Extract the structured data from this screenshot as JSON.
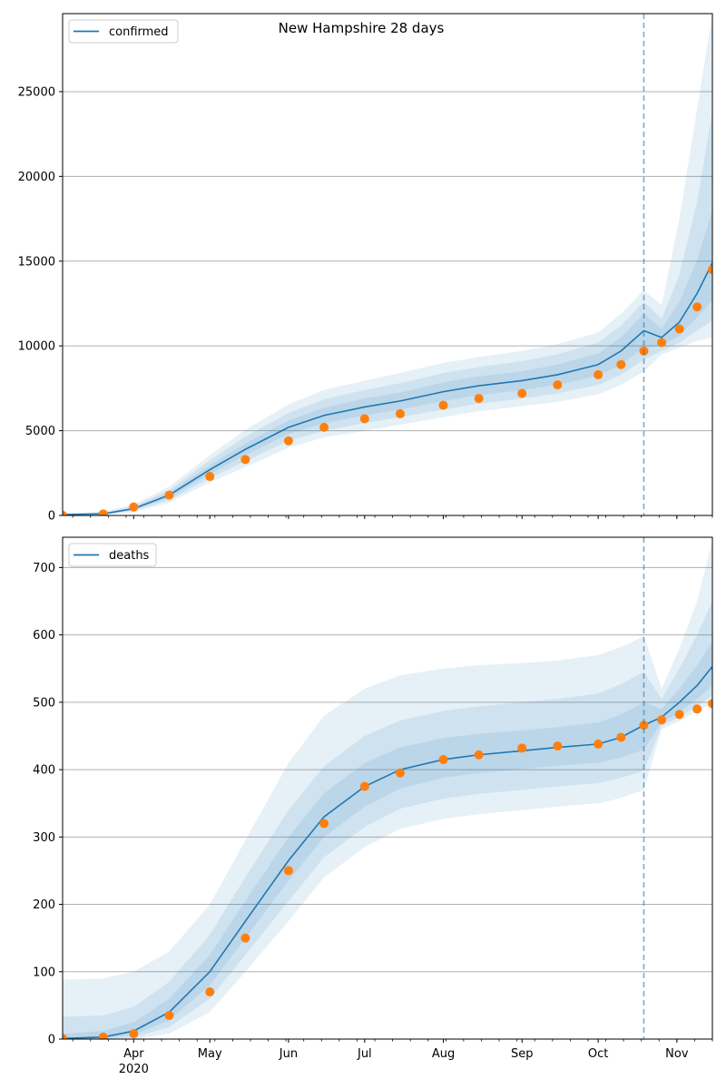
{
  "figure_title": "New Hampshire 28 days",
  "colors": {
    "model": "#1f77b4",
    "observed": "#ff7f0e",
    "band": "#1f77b4",
    "grid": "#b0b0b0",
    "forecast_line": "#1f77b4"
  },
  "x_ticks": [
    {
      "date": "2020-04-01",
      "label": "Apr",
      "sublabel": "2020"
    },
    {
      "date": "2020-05-01",
      "label": "May",
      "sublabel": ""
    },
    {
      "date": "2020-06-01",
      "label": "Jun",
      "sublabel": ""
    },
    {
      "date": "2020-07-01",
      "label": "Jul",
      "sublabel": ""
    },
    {
      "date": "2020-08-01",
      "label": "Aug",
      "sublabel": ""
    },
    {
      "date": "2020-09-01",
      "label": "Sep",
      "sublabel": ""
    },
    {
      "date": "2020-10-01",
      "label": "Oct",
      "sublabel": ""
    },
    {
      "date": "2020-11-01",
      "label": "Nov",
      "sublabel": ""
    }
  ],
  "chart_data": [
    {
      "type": "line",
      "legend": "confirmed",
      "legend_position": "top-left",
      "grid": "horizontal",
      "xlim": [
        "2020-03-04",
        "2020-11-15"
      ],
      "ylim": [
        0,
        29600
      ],
      "yticks": [
        0,
        5000,
        10000,
        15000,
        20000,
        25000
      ],
      "forecast_start": "2020-10-19",
      "model": {
        "x": [
          "2020-03-04",
          "2020-03-20",
          "2020-04-01",
          "2020-04-15",
          "2020-05-01",
          "2020-05-15",
          "2020-06-01",
          "2020-06-15",
          "2020-07-01",
          "2020-07-15",
          "2020-08-01",
          "2020-08-15",
          "2020-09-01",
          "2020-09-15",
          "2020-10-01",
          "2020-10-10",
          "2020-10-19",
          "2020-10-26",
          "2020-11-02",
          "2020-11-09",
          "2020-11-15"
        ],
        "y": [
          50,
          100,
          400,
          1200,
          2700,
          3900,
          5200,
          5900,
          6400,
          6750,
          7300,
          7650,
          7950,
          8300,
          8900,
          9700,
          10900,
          10500,
          11400,
          13100,
          14900
        ],
        "band_inner_lo": [
          30,
          80,
          350,
          1050,
          2450,
          3550,
          4800,
          5450,
          5900,
          6250,
          6750,
          7100,
          7400,
          7700,
          8250,
          8900,
          9900,
          10000,
          10600,
          11700,
          12700
        ],
        "band_inner_hi": [
          70,
          130,
          460,
          1350,
          2950,
          4250,
          5600,
          6350,
          6900,
          7250,
          7850,
          8200,
          8500,
          8900,
          9550,
          10500,
          11900,
          11000,
          12600,
          15100,
          18000
        ],
        "band_mid_lo": [
          15,
          50,
          280,
          900,
          2200,
          3200,
          4400,
          5000,
          5450,
          5800,
          6250,
          6600,
          6900,
          7200,
          7700,
          8300,
          9200,
          9700,
          10200,
          10900,
          11500
        ],
        "band_mid_hi": [
          90,
          170,
          550,
          1500,
          3250,
          4650,
          6050,
          6850,
          7400,
          7800,
          8400,
          8750,
          9100,
          9500,
          10200,
          11200,
          12600,
          11600,
          14200,
          18500,
          23800
        ],
        "band_outer_lo": [
          0,
          20,
          200,
          750,
          1950,
          2850,
          4000,
          4600,
          5000,
          5350,
          5800,
          6150,
          6450,
          6700,
          7150,
          7700,
          8500,
          9500,
          9900,
          10300,
          10500
        ],
        "band_outer_hi": [
          120,
          220,
          650,
          1700,
          3550,
          5050,
          6550,
          7400,
          7950,
          8400,
          9000,
          9350,
          9700,
          10100,
          10800,
          11900,
          13300,
          12400,
          17500,
          24000,
          29600
        ]
      },
      "observed": {
        "x": [
          "2020-03-04",
          "2020-03-20",
          "2020-04-01",
          "2020-04-15",
          "2020-05-01",
          "2020-05-15",
          "2020-06-01",
          "2020-06-15",
          "2020-07-01",
          "2020-07-15",
          "2020-08-01",
          "2020-08-15",
          "2020-09-01",
          "2020-09-15",
          "2020-10-01",
          "2020-10-10",
          "2020-10-19",
          "2020-10-26",
          "2020-11-02",
          "2020-11-09",
          "2020-11-15"
        ],
        "y": [
          10,
          90,
          500,
          1200,
          2300,
          3300,
          4400,
          5200,
          5700,
          6000,
          6500,
          6900,
          7200,
          7700,
          8300,
          8900,
          9700,
          10200,
          11000,
          12300,
          14500
        ]
      }
    },
    {
      "type": "line",
      "legend": "deaths",
      "legend_position": "top-left",
      "grid": "horizontal",
      "xlim": [
        "2020-03-04",
        "2020-11-15"
      ],
      "ylim": [
        0,
        745
      ],
      "yticks": [
        0,
        100,
        200,
        300,
        400,
        500,
        600,
        700
      ],
      "forecast_start": "2020-10-19",
      "model": {
        "x": [
          "2020-03-04",
          "2020-03-20",
          "2020-04-01",
          "2020-04-15",
          "2020-05-01",
          "2020-05-15",
          "2020-06-01",
          "2020-06-15",
          "2020-07-01",
          "2020-07-15",
          "2020-08-01",
          "2020-08-15",
          "2020-09-01",
          "2020-09-15",
          "2020-10-01",
          "2020-10-10",
          "2020-10-19",
          "2020-10-26",
          "2020-11-02",
          "2020-11-09",
          "2020-11-15"
        ],
        "y": [
          1,
          3,
          12,
          40,
          100,
          175,
          265,
          330,
          375,
          400,
          415,
          422,
          428,
          433,
          438,
          448,
          466,
          478,
          500,
          525,
          553
        ],
        "band_inner_lo": [
          0,
          1,
          6,
          28,
          80,
          150,
          235,
          300,
          345,
          372,
          388,
          395,
          401,
          406,
          410,
          418,
          430,
          470,
          485,
          505,
          525
        ],
        "band_inner_hi": [
          8,
          12,
          25,
          60,
          125,
          205,
          300,
          365,
          410,
          433,
          447,
          453,
          458,
          463,
          470,
          482,
          500,
          490,
          520,
          555,
          590
        ],
        "band_mid_lo": [
          0,
          0,
          2,
          18,
          60,
          125,
          205,
          270,
          315,
          342,
          357,
          364,
          370,
          375,
          380,
          388,
          398,
          465,
          478,
          495,
          510
        ],
        "band_mid_hi": [
          33,
          35,
          48,
          85,
          155,
          240,
          340,
          405,
          450,
          473,
          487,
          494,
          500,
          505,
          513,
          527,
          545,
          505,
          550,
          600,
          650
        ],
        "band_outer_lo": [
          0,
          0,
          0,
          8,
          40,
          100,
          175,
          240,
          285,
          312,
          327,
          334,
          340,
          345,
          350,
          358,
          370,
          460,
          472,
          487,
          498
        ],
        "band_outer_hi": [
          88,
          90,
          100,
          130,
          200,
          295,
          410,
          480,
          520,
          540,
          550,
          555,
          558,
          562,
          570,
          582,
          598,
          520,
          580,
          650,
          740
        ]
      },
      "observed": {
        "x": [
          "2020-03-04",
          "2020-03-20",
          "2020-04-01",
          "2020-04-15",
          "2020-05-01",
          "2020-05-15",
          "2020-06-01",
          "2020-06-15",
          "2020-07-01",
          "2020-07-15",
          "2020-08-01",
          "2020-08-15",
          "2020-09-01",
          "2020-09-15",
          "2020-10-01",
          "2020-10-10",
          "2020-10-19",
          "2020-10-26",
          "2020-11-02",
          "2020-11-09",
          "2020-11-15"
        ],
        "y": [
          1,
          3,
          8,
          35,
          70,
          150,
          250,
          320,
          375,
          395,
          415,
          422,
          432,
          435,
          438,
          448,
          466,
          474,
          482,
          490,
          498
        ]
      }
    }
  ]
}
